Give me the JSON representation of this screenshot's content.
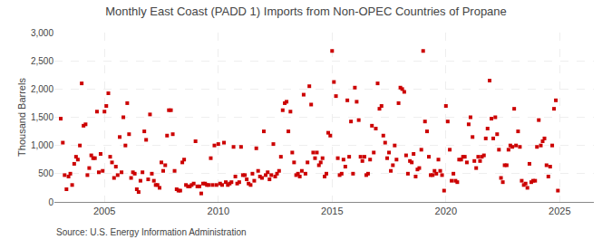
{
  "chart_data": {
    "type": "scatter",
    "title": "Monthly East Coast (PADD 1) Imports from Non-OPEC Countries of Propane",
    "ylabel": "Thousand Barrels",
    "annotations": [
      "Source: U.S. Energy Information Administration"
    ],
    "color": "#CC0000",
    "marker": "square",
    "grid": true,
    "xlim": [
      2002.8,
      2026.5
    ],
    "xticks": [
      2005,
      2010,
      2015,
      2020,
      2025
    ],
    "ylim": [
      0,
      3000
    ],
    "yticks": [
      0,
      500,
      {
        "value": 1000,
        "label": "1,000"
      },
      {
        "value": 1500,
        "label": "1,500"
      },
      {
        "value": 2000,
        "label": "2,000"
      },
      {
        "value": 2500,
        "label": "2,500"
      },
      {
        "value": 3000,
        "label": "3,000"
      }
    ],
    "x": [
      2003.08,
      2003.17,
      2003.25,
      2003.33,
      2003.42,
      2003.5,
      2003.58,
      2003.67,
      2003.75,
      2003.83,
      2003.92,
      2004.0,
      2004.08,
      2004.17,
      2004.25,
      2004.33,
      2004.42,
      2004.5,
      2004.58,
      2004.67,
      2004.75,
      2004.83,
      2004.92,
      2005.0,
      2005.08,
      2005.17,
      2005.25,
      2005.33,
      2005.42,
      2005.5,
      2005.58,
      2005.67,
      2005.75,
      2005.83,
      2005.92,
      2006.0,
      2006.08,
      2006.17,
      2006.25,
      2006.33,
      2006.42,
      2006.5,
      2006.58,
      2006.67,
      2006.75,
      2006.83,
      2006.92,
      2007.0,
      2007.08,
      2007.17,
      2007.25,
      2007.33,
      2007.42,
      2007.5,
      2007.58,
      2007.67,
      2007.75,
      2007.83,
      2007.92,
      2008.0,
      2008.08,
      2008.17,
      2008.25,
      2008.33,
      2008.42,
      2008.5,
      2008.58,
      2008.67,
      2008.75,
      2008.83,
      2008.92,
      2009.0,
      2009.08,
      2009.17,
      2009.25,
      2009.33,
      2009.42,
      2009.5,
      2009.58,
      2009.67,
      2009.75,
      2009.83,
      2009.92,
      2010.0,
      2010.08,
      2010.17,
      2010.25,
      2010.33,
      2010.42,
      2010.5,
      2010.58,
      2010.67,
      2010.75,
      2010.83,
      2010.92,
      2011.0,
      2011.08,
      2011.17,
      2011.25,
      2011.33,
      2011.42,
      2011.5,
      2011.58,
      2011.67,
      2011.75,
      2011.83,
      2011.92,
      2012.0,
      2012.08,
      2012.17,
      2012.25,
      2012.33,
      2012.42,
      2012.5,
      2012.58,
      2012.67,
      2012.75,
      2012.83,
      2012.92,
      2013.0,
      2013.08,
      2013.17,
      2013.25,
      2013.33,
      2013.42,
      2013.5,
      2013.58,
      2013.67,
      2013.75,
      2013.83,
      2013.92,
      2014.0,
      2014.08,
      2014.17,
      2014.25,
      2014.33,
      2014.42,
      2014.5,
      2014.58,
      2014.67,
      2014.75,
      2014.83,
      2014.92,
      2015.0,
      2015.08,
      2015.17,
      2015.25,
      2015.33,
      2015.42,
      2015.5,
      2015.58,
      2015.67,
      2015.75,
      2015.83,
      2015.92,
      2016.0,
      2016.08,
      2016.17,
      2016.25,
      2016.33,
      2016.42,
      2016.5,
      2016.58,
      2016.67,
      2016.75,
      2016.83,
      2016.92,
      2017.0,
      2017.08,
      2017.17,
      2017.25,
      2017.33,
      2017.42,
      2017.5,
      2017.58,
      2017.67,
      2017.75,
      2017.83,
      2017.92,
      2018.0,
      2018.08,
      2018.17,
      2018.25,
      2018.33,
      2018.42,
      2018.5,
      2018.58,
      2018.67,
      2018.75,
      2018.83,
      2018.92,
      2019.0,
      2019.08,
      2019.17,
      2019.25,
      2019.33,
      2019.42,
      2019.5,
      2019.58,
      2019.67,
      2019.75,
      2019.83,
      2019.92,
      2020.0,
      2020.08,
      2020.17,
      2020.25,
      2020.33,
      2020.42,
      2020.5,
      2020.58,
      2020.67,
      2020.75,
      2020.83,
      2020.92,
      2021.0,
      2021.08,
      2021.17,
      2021.25,
      2021.33,
      2021.42,
      2021.5,
      2021.58,
      2021.67,
      2021.75,
      2021.83,
      2021.92,
      2022.0,
      2022.08,
      2022.17,
      2022.25,
      2022.33,
      2022.42,
      2022.5,
      2022.58,
      2022.67,
      2022.75,
      2022.83,
      2022.92,
      2023.0,
      2023.08,
      2023.17,
      2023.25,
      2023.33,
      2023.42,
      2023.5,
      2023.58,
      2023.67,
      2023.75,
      2023.83,
      2023.92,
      2024.0,
      2024.08,
      2024.17,
      2024.25,
      2024.33,
      2024.42,
      2024.5,
      2024.58,
      2024.67,
      2024.75,
      2024.83,
      2024.92
    ],
    "values": [
      1475,
      1050,
      475,
      225,
      450,
      500,
      300,
      675,
      800,
      750,
      1000,
      2100,
      1350,
      1375,
      475,
      600,
      825,
      775,
      775,
      1600,
      525,
      850,
      550,
      1600,
      1700,
      1925,
      800,
      700,
      425,
      625,
      475,
      1150,
      525,
      1500,
      1000,
      1750,
      1200,
      425,
      525,
      500,
      225,
      175,
      375,
      525,
      1250,
      1100,
      400,
      1550,
      500,
      375,
      300,
      300,
      250,
      700,
      550,
      650,
      1175,
      1625,
      1625,
      1200,
      550,
      225,
      200,
      200,
      700,
      750,
      300,
      275,
      275,
      300,
      325,
      1075,
      275,
      275,
      150,
      325,
      325,
      300,
      300,
      775,
      300,
      1000,
      300,
      1025,
      325,
      300,
      1050,
      350,
      300,
      325,
      350,
      975,
      450,
      325,
      350,
      975,
      475,
      475,
      400,
      325,
      300,
      500,
      375,
      950,
      550,
      450,
      425,
      1250,
      475,
      525,
      400,
      475,
      1025,
      450,
      500,
      550,
      800,
      1625,
      1750,
      1775,
      1250,
      1600,
      875,
      700,
      475,
      500,
      450,
      550,
      1900,
      500,
      700,
      2050,
      1725,
      875,
      775,
      875,
      650,
      700,
      775,
      450,
      500,
      1225,
      1175,
      2675,
      2125,
      1875,
      775,
      475,
      500,
      750,
      625,
      1800,
      800,
      1425,
      500,
      2025,
      1775,
      1450,
      800,
      725,
      800,
      475,
      500,
      750,
      1350,
      875,
      1300,
      2100,
      1650,
      1700,
      1175,
      1050,
      775,
      875,
      550,
      650,
      1000,
      750,
      1750,
      2025,
      2000,
      1950,
      825,
      500,
      725,
      700,
      850,
      450,
      575,
      600,
      925,
      2675,
      1425,
      1250,
      800,
      475,
      475,
      550,
      500,
      750,
      550,
      475,
      200,
      1700,
      1425,
      925,
      375,
      500,
      375,
      350,
      750,
      750,
      800,
      800,
      700,
      1375,
      1500,
      1150,
      725,
      600,
      800,
      725,
      800,
      825,
      1125,
      1300,
      2150,
      1475,
      1125,
      1500,
      1200,
      925,
      425,
      350,
      650,
      650,
      925,
      1000,
      975,
      1650,
      1000,
      1250,
      975,
      375,
      300,
      325,
      250,
      675,
      350,
      375,
      375,
      975,
      1450,
      1000,
      1075,
      1125,
      650,
      450,
      625,
      1000,
      1650,
      1800,
      200
    ]
  }
}
